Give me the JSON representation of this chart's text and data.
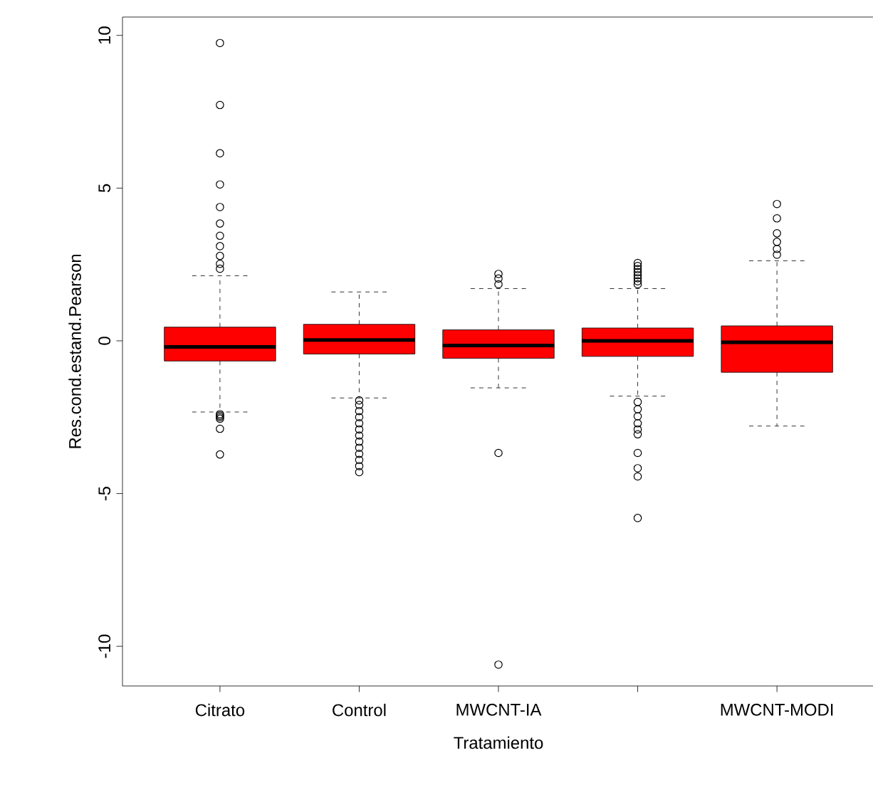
{
  "chart_data": {
    "type": "box",
    "xlabel": "Tratamiento",
    "ylabel": "Res.cond.estand.Pearson",
    "categories": [
      "Citrato",
      "Control",
      "MWCNT-IA",
      null,
      "MWCNT-MODI"
    ],
    "color": "#ff0000",
    "ylim": [
      -11.3,
      10.6
    ],
    "yticks": [
      -10,
      -5,
      0,
      5,
      10
    ],
    "boxes": [
      {
        "low": -2.33,
        "q1": -0.66,
        "median": -0.2,
        "q3": 0.45,
        "high": 2.13,
        "outliers": [
          9.75,
          7.72,
          6.14,
          5.12,
          4.38,
          3.84,
          3.44,
          3.1,
          2.78,
          2.52,
          2.36,
          -2.4,
          -2.45,
          -2.5,
          -2.55,
          -2.88,
          -3.72
        ]
      },
      {
        "low": -1.87,
        "q1": -0.43,
        "median": 0.03,
        "q3": 0.54,
        "high": 1.6,
        "outliers": [
          -1.95,
          -2.1,
          -2.3,
          -2.5,
          -2.7,
          -2.9,
          -3.1,
          -3.3,
          -3.5,
          -3.7,
          -3.9,
          -4.1,
          -4.3
        ]
      },
      {
        "low": -1.54,
        "q1": -0.57,
        "median": -0.15,
        "q3": 0.36,
        "high": 1.71,
        "outliers": [
          2.19,
          2.04,
          1.85,
          -3.67,
          -10.6
        ]
      },
      {
        "low": -1.81,
        "q1": -0.51,
        "median": 0.0,
        "q3": 0.42,
        "high": 1.71,
        "outliers": [
          2.55,
          2.45,
          2.35,
          2.25,
          2.15,
          2.05,
          1.95,
          1.85,
          -2.0,
          -2.24,
          -2.47,
          -2.7,
          -2.9,
          -3.06,
          -3.67,
          -4.17,
          -4.44,
          -5.8
        ]
      },
      {
        "low": -2.79,
        "q1": -1.03,
        "median": -0.05,
        "q3": 0.49,
        "high": 2.62,
        "outliers": [
          4.48,
          4.01,
          3.52,
          3.24,
          3.01,
          2.82
        ]
      }
    ]
  }
}
